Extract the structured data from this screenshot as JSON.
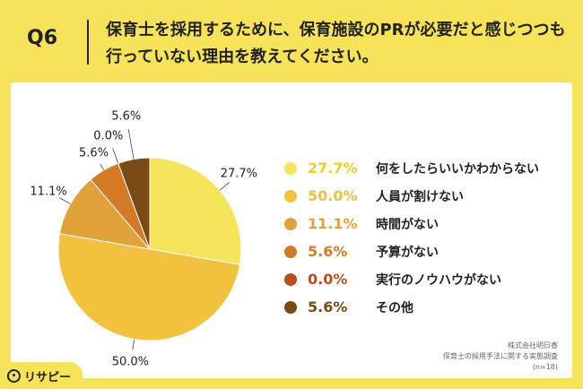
{
  "header": {
    "q_label": "Q6",
    "question": "保育士を採用するために、保育施設のPRが必要だと感じつつも行っていない理由を教えてください。"
  },
  "colors": [
    "#f5e55a",
    "#f2c13e",
    "#e2a23a",
    "#d47a24",
    "#b4501e",
    "#7a4a14"
  ],
  "chart_data": {
    "type": "pie",
    "categories": [
      "何をしたらいいかわからない",
      "人員が割けない",
      "時間がない",
      "予算がない",
      "実行のノウハウがない",
      "その他"
    ],
    "values": [
      27.7,
      50.0,
      11.1,
      5.6,
      0.0,
      5.6
    ],
    "value_labels": [
      "27.7%",
      "50.0%",
      "11.1%",
      "5.6%",
      "0.0%",
      "5.6%"
    ],
    "slice_labels": [
      "27.7%",
      "50.0%",
      "11.1%",
      "5.6%",
      "0.0%",
      "5.6%"
    ],
    "start": "12 o'clock",
    "direction": "clockwise",
    "legend_position": "right"
  },
  "source": {
    "line1": "株式会社明日香",
    "line2": "保育士の採用手法に関する実態調査",
    "line3": "(n=18)"
  },
  "logo": {
    "text": "リサピー"
  }
}
